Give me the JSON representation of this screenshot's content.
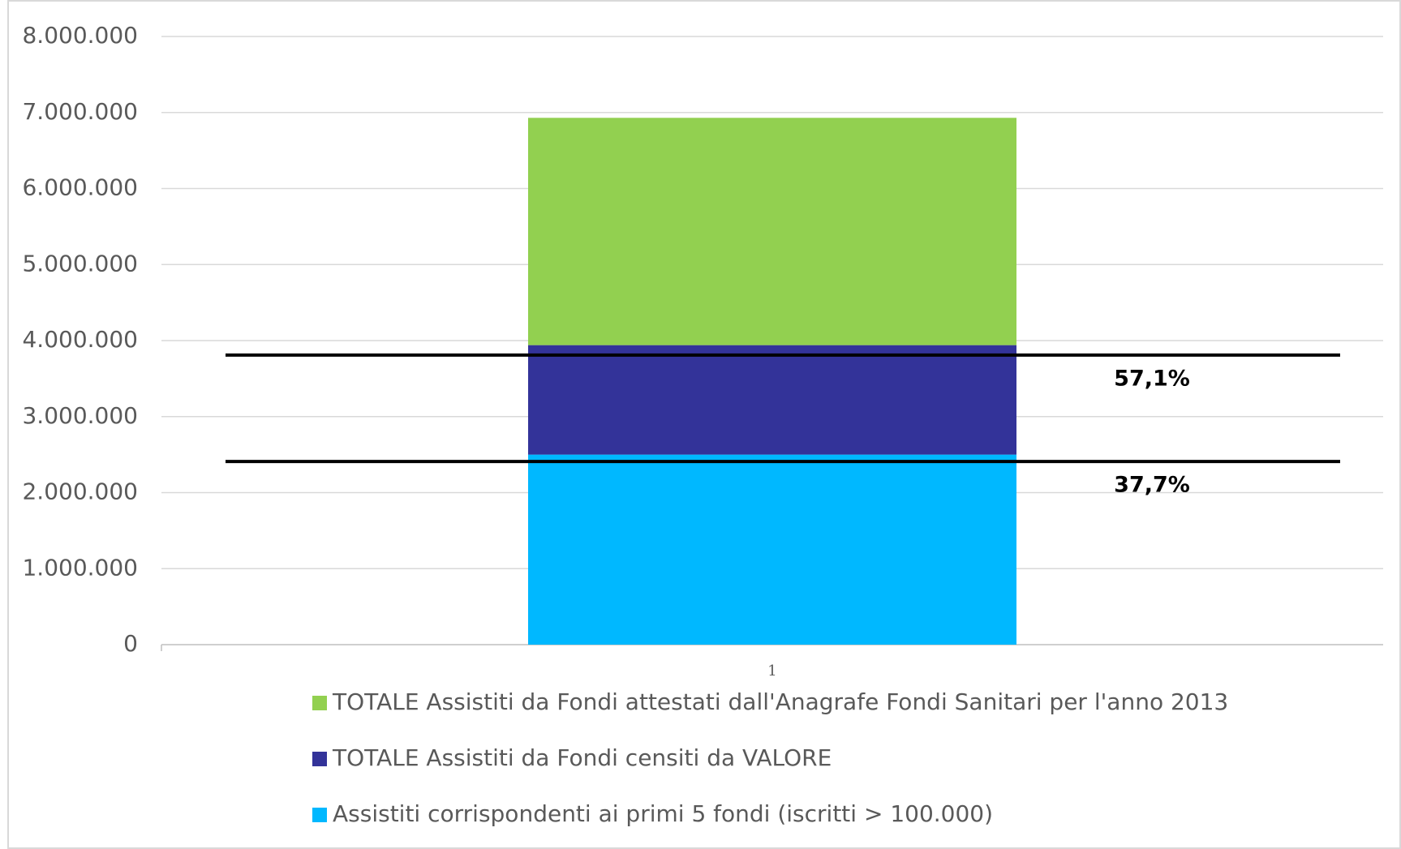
{
  "chart_data": {
    "type": "stacked_bar",
    "categories": [
      "1"
    ],
    "series": [
      {
        "name": "Assistiti corrispondenti ai primi 5 fondi (iscritti > 100.000)",
        "color": "#00b8ff",
        "values": [
          2500000
        ]
      },
      {
        "name": "TOTALE Assistiti da Fondi censiti da VALORE",
        "color": "#333399",
        "values": [
          1440000
        ]
      },
      {
        "name": "TOTALE Assistiti da Fondi attestati dall'Anagrafe Fondi Sanitari per l'anno 2013",
        "color": "#92d050",
        "values": [
          2990000
        ]
      }
    ],
    "reference_lines": [
      {
        "value": 3810000,
        "label": "57,1%"
      },
      {
        "value": 2410000,
        "label": "37,7%"
      }
    ],
    "ylim": [
      0,
      8000000
    ],
    "yticks": [
      0,
      {
        "value": 1000000,
        "label": "1.000.000"
      },
      {
        "value": 2000000,
        "label": "2.000.000"
      },
      {
        "value": 3000000,
        "label": "3.000.000"
      },
      {
        "value": 4000000,
        "label": "4.000.000"
      },
      {
        "value": 5000000,
        "label": "5.000.000"
      },
      {
        "value": 6000000,
        "label": "6.000.000"
      },
      {
        "value": 7000000,
        "label": "7.000.000"
      },
      {
        "value": 8000000,
        "label": "8.000.000"
      }
    ],
    "grid": true
  }
}
